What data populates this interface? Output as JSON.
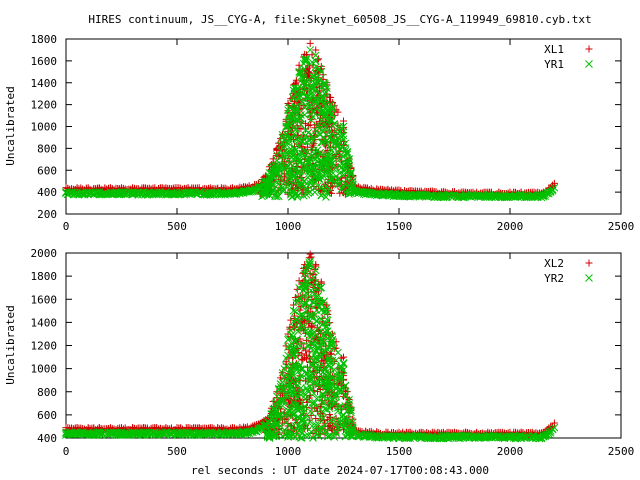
{
  "title": "HIRES continuum, JS__CYG-A, file:Skynet_60508_JS__CYG-A_119949_69810.cyb.txt",
  "xlabel": "rel seconds : UT date 2024-07-17T00:08:43.000",
  "colors": {
    "red": "#d40000",
    "green": "#00c000"
  },
  "chart_data": [
    {
      "type": "scatter",
      "ylabel": "Uncalibrated",
      "xlim": [
        0,
        2500
      ],
      "ylim": [
        200,
        1800
      ],
      "xticks": [
        0,
        500,
        1000,
        1500,
        2000,
        2500
      ],
      "yticks": [
        200,
        400,
        600,
        800,
        1000,
        1200,
        1400,
        1600,
        1800
      ],
      "legend_position": "top-right",
      "grid": false,
      "series": [
        {
          "name": "XL1",
          "marker": "plus",
          "color": "#d40000",
          "x": [
            0,
            50,
            100,
            150,
            200,
            250,
            300,
            350,
            400,
            450,
            500,
            550,
            600,
            650,
            700,
            750,
            800,
            850,
            900,
            950,
            1000,
            1025,
            1050,
            1075,
            1100,
            1125,
            1150,
            1175,
            1200,
            1250,
            1300,
            1350,
            1400,
            1450,
            1500,
            1550,
            1600,
            1650,
            1700,
            1750,
            1800,
            1850,
            1900,
            1950,
            2000,
            2050,
            2100,
            2150,
            2200
          ],
          "y": [
            440,
            440,
            440,
            440,
            440,
            440,
            440,
            440,
            440,
            440,
            440,
            440,
            440,
            440,
            440,
            440,
            450,
            470,
            550,
            800,
            1210,
            1380,
            1560,
            1660,
            1760,
            1700,
            1550,
            1400,
            1220,
            1050,
            460,
            440,
            430,
            425,
            420,
            415,
            410,
            410,
            405,
            405,
            400,
            400,
            400,
            400,
            400,
            400,
            400,
            400,
            480
          ]
        },
        {
          "name": "YR1",
          "marker": "cross",
          "color": "#00c000",
          "x": [
            0,
            50,
            100,
            150,
            200,
            250,
            300,
            350,
            400,
            450,
            500,
            550,
            600,
            650,
            700,
            750,
            800,
            850,
            900,
            950,
            1000,
            1025,
            1050,
            1075,
            1100,
            1125,
            1150,
            1175,
            1200,
            1250,
            1300,
            1350,
            1400,
            1450,
            1500,
            1550,
            1600,
            1650,
            1700,
            1750,
            1800,
            1850,
            1900,
            1950,
            2000,
            2050,
            2100,
            2150,
            2200
          ],
          "y": [
            400,
            400,
            400,
            400,
            400,
            400,
            400,
            400,
            400,
            400,
            400,
            400,
            400,
            400,
            400,
            400,
            410,
            430,
            500,
            740,
            1150,
            1330,
            1500,
            1620,
            1700,
            1650,
            1500,
            1350,
            1180,
            1000,
            420,
            400,
            395,
            390,
            385,
            380,
            380,
            375,
            375,
            375,
            375,
            375,
            375,
            375,
            375,
            375,
            375,
            375,
            440
          ]
        }
      ]
    },
    {
      "type": "scatter",
      "ylabel": "Uncalibrated",
      "xlim": [
        0,
        2500
      ],
      "ylim": [
        400,
        2000
      ],
      "xticks": [
        0,
        500,
        1000,
        1500,
        2000,
        2500
      ],
      "yticks": [
        400,
        600,
        800,
        1000,
        1200,
        1400,
        1600,
        1800,
        2000
      ],
      "legend_position": "top-right",
      "grid": false,
      "series": [
        {
          "name": "XL2",
          "marker": "plus",
          "color": "#d40000",
          "x": [
            0,
            50,
            100,
            150,
            200,
            250,
            300,
            350,
            400,
            450,
            500,
            550,
            600,
            650,
            700,
            750,
            800,
            850,
            900,
            950,
            1000,
            1025,
            1050,
            1075,
            1100,
            1125,
            1150,
            1175,
            1200,
            1250,
            1300,
            1350,
            1400,
            1450,
            1500,
            1550,
            1600,
            1650,
            1700,
            1750,
            1800,
            1850,
            1900,
            1950,
            2000,
            2050,
            2100,
            2150,
            2200
          ],
          "y": [
            490,
            490,
            490,
            490,
            490,
            490,
            490,
            490,
            490,
            490,
            490,
            490,
            490,
            490,
            490,
            490,
            495,
            510,
            560,
            800,
            1300,
            1550,
            1760,
            1900,
            1990,
            1900,
            1750,
            1550,
            1300,
            1100,
            470,
            460,
            455,
            450,
            450,
            450,
            450,
            450,
            450,
            450,
            450,
            450,
            450,
            450,
            450,
            450,
            450,
            450,
            530
          ]
        },
        {
          "name": "YR2",
          "marker": "cross",
          "color": "#00c000",
          "x": [
            0,
            50,
            100,
            150,
            200,
            250,
            300,
            350,
            400,
            450,
            500,
            550,
            600,
            650,
            700,
            750,
            800,
            850,
            900,
            950,
            1000,
            1025,
            1050,
            1075,
            1100,
            1125,
            1150,
            1175,
            1200,
            1250,
            1300,
            1350,
            1400,
            1450,
            1500,
            1550,
            1600,
            1650,
            1700,
            1750,
            1800,
            1850,
            1900,
            1950,
            2000,
            2050,
            2100,
            2150,
            2200
          ],
          "y": [
            450,
            450,
            450,
            450,
            450,
            450,
            450,
            450,
            450,
            450,
            450,
            450,
            450,
            450,
            450,
            450,
            455,
            470,
            520,
            760,
            1250,
            1500,
            1700,
            1850,
            1930,
            1850,
            1700,
            1500,
            1250,
            1050,
            440,
            430,
            425,
            420,
            420,
            420,
            420,
            420,
            420,
            420,
            420,
            420,
            420,
            420,
            420,
            420,
            420,
            420,
            490
          ]
        }
      ]
    }
  ]
}
